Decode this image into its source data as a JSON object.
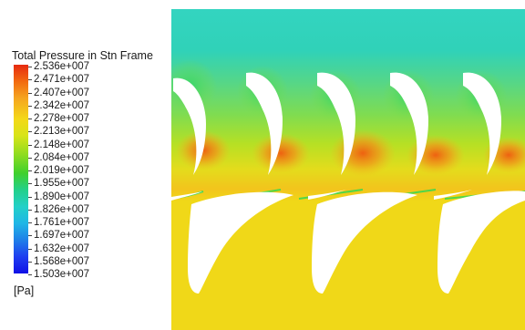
{
  "legend": {
    "title": "Total Pressure in Stn Frame",
    "unit": "[Pa]",
    "ticks": [
      "2.536e+007",
      "2.471e+007",
      "2.407e+007",
      "2.342e+007",
      "2.278e+007",
      "2.213e+007",
      "2.148e+007",
      "2.084e+007",
      "2.019e+007",
      "1.955e+007",
      "1.890e+007",
      "1.826e+007",
      "1.761e+007",
      "1.697e+007",
      "1.632e+007",
      "1.568e+007",
      "1.503e+007"
    ],
    "colors": {
      "max": "#e62a10",
      "orange": "#f5a520",
      "yellow": "#f4d818",
      "green": "#3fd02c",
      "cyan": "#22d0c8",
      "blue": "#1f3ef0",
      "min": "#1010e6"
    }
  },
  "field": {
    "colors": {
      "inlet": "#2fd2b8",
      "mid": "#b4e020",
      "outlet": "#f0d818",
      "hotspot": "#f08a18",
      "blade": "#ffffff"
    }
  }
}
